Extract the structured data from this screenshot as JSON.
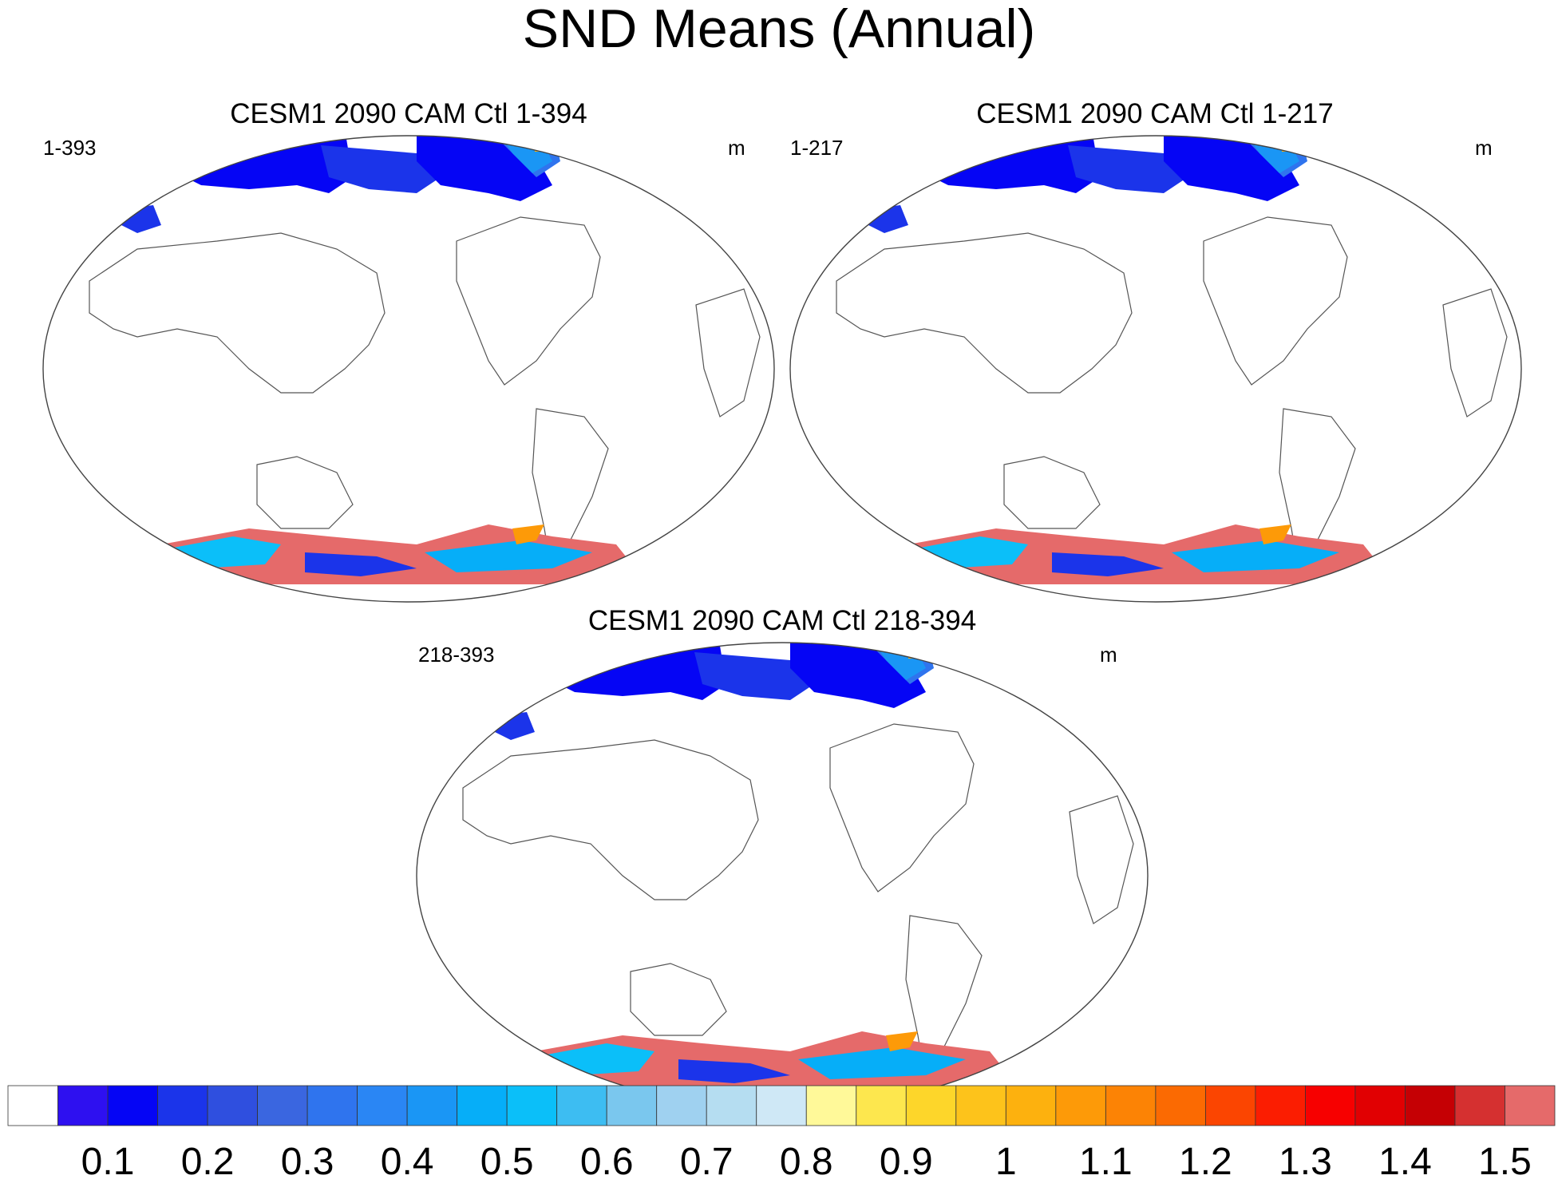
{
  "figure": {
    "title": "SND Means (Annual)"
  },
  "panels": [
    {
      "title": "CESM1 2090 CAM Ctl 1-394",
      "left_label": "1-393",
      "units": "m"
    },
    {
      "title": "CESM1 2090 CAM Ctl 1-217",
      "left_label": "1-217",
      "units": "m"
    },
    {
      "title": "CESM1 2090 CAM Ctl 218-394",
      "left_label": "218-393",
      "units": "m"
    }
  ],
  "chart_data": {
    "type": "heatmap",
    "title": "SND Means (Annual)",
    "variable": "SND",
    "units": "m",
    "projection": "Winkel tripel (Pacific-centered)",
    "panels": [
      "CESM1 2090 CAM Ctl 1-394",
      "CESM1 2090 CAM Ctl 1-217",
      "CESM1 2090 CAM Ctl 218-394"
    ],
    "colorbar": {
      "levels": [
        "0.1",
        "0.2",
        "0.3",
        "0.4",
        "0.5",
        "0.6",
        "0.7",
        "0.8",
        "0.9",
        "1",
        "1.1",
        "1.2",
        "1.3",
        "1.4",
        "1.5"
      ],
      "colors": [
        "#ffffff",
        "#2e10f0",
        "#0505f5",
        "#1b34ea",
        "#2f4fdf",
        "#3a66e0",
        "#2f74ee",
        "#2a86f4",
        "#1a96f5",
        "#06aef8",
        "#0bbff9",
        "#3dbdf2",
        "#7ac7ee",
        "#9fd1f0",
        "#b5ddf1",
        "#cfe8f6",
        "#fff999",
        "#fde74e",
        "#fdd62a",
        "#fdc31b",
        "#fdb10e",
        "#fd9a08",
        "#fc8305",
        "#fb6a02",
        "#fb4501",
        "#fb1d01",
        "#f70000",
        "#e10002",
        "#c50004",
        "#d53030",
        "#e56a6a"
      ]
    }
  }
}
